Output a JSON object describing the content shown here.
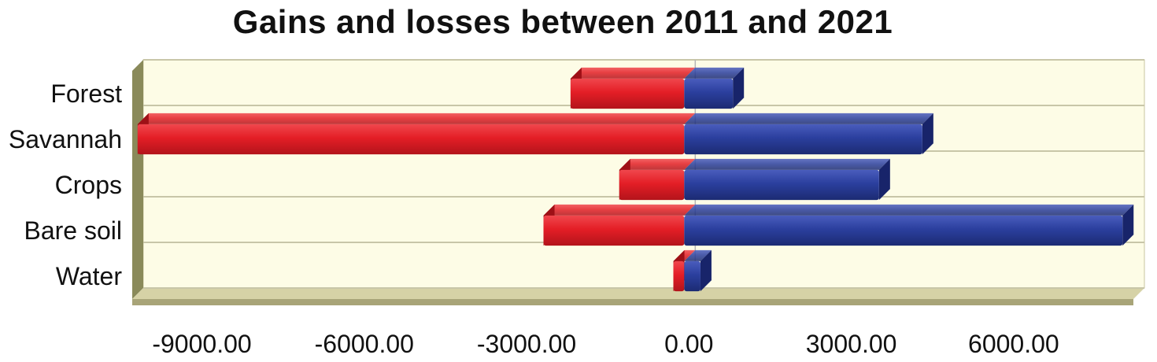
{
  "chart_data": {
    "type": "bar",
    "orientation": "horizontal",
    "title": "Gains and losses between 2011 and 2021",
    "categories": [
      "Forest",
      "Savannah",
      "Crops",
      "Bare soil",
      "Water"
    ],
    "series": [
      {
        "values": [
          -2100,
          -10100,
          -1200,
          -2600,
          -200
        ]
      },
      {
        "values": [
          900,
          4400,
          3600,
          8100,
          300
        ]
      }
    ],
    "colors": [
      "#e41e26",
      "#2b3f9e"
    ],
    "xlim": [
      -10200,
      8300
    ],
    "xticks": [
      -9000,
      -6000,
      -3000,
      0,
      3000,
      6000
    ],
    "xtick_labels": [
      "-9000.00",
      "-6000.00",
      "-3000.00",
      "0.00",
      "3000.00",
      "6000.00"
    ],
    "xlabel": "",
    "ylabel": "",
    "grid": true,
    "style": "3d",
    "plot_background": "#fdfce6"
  }
}
